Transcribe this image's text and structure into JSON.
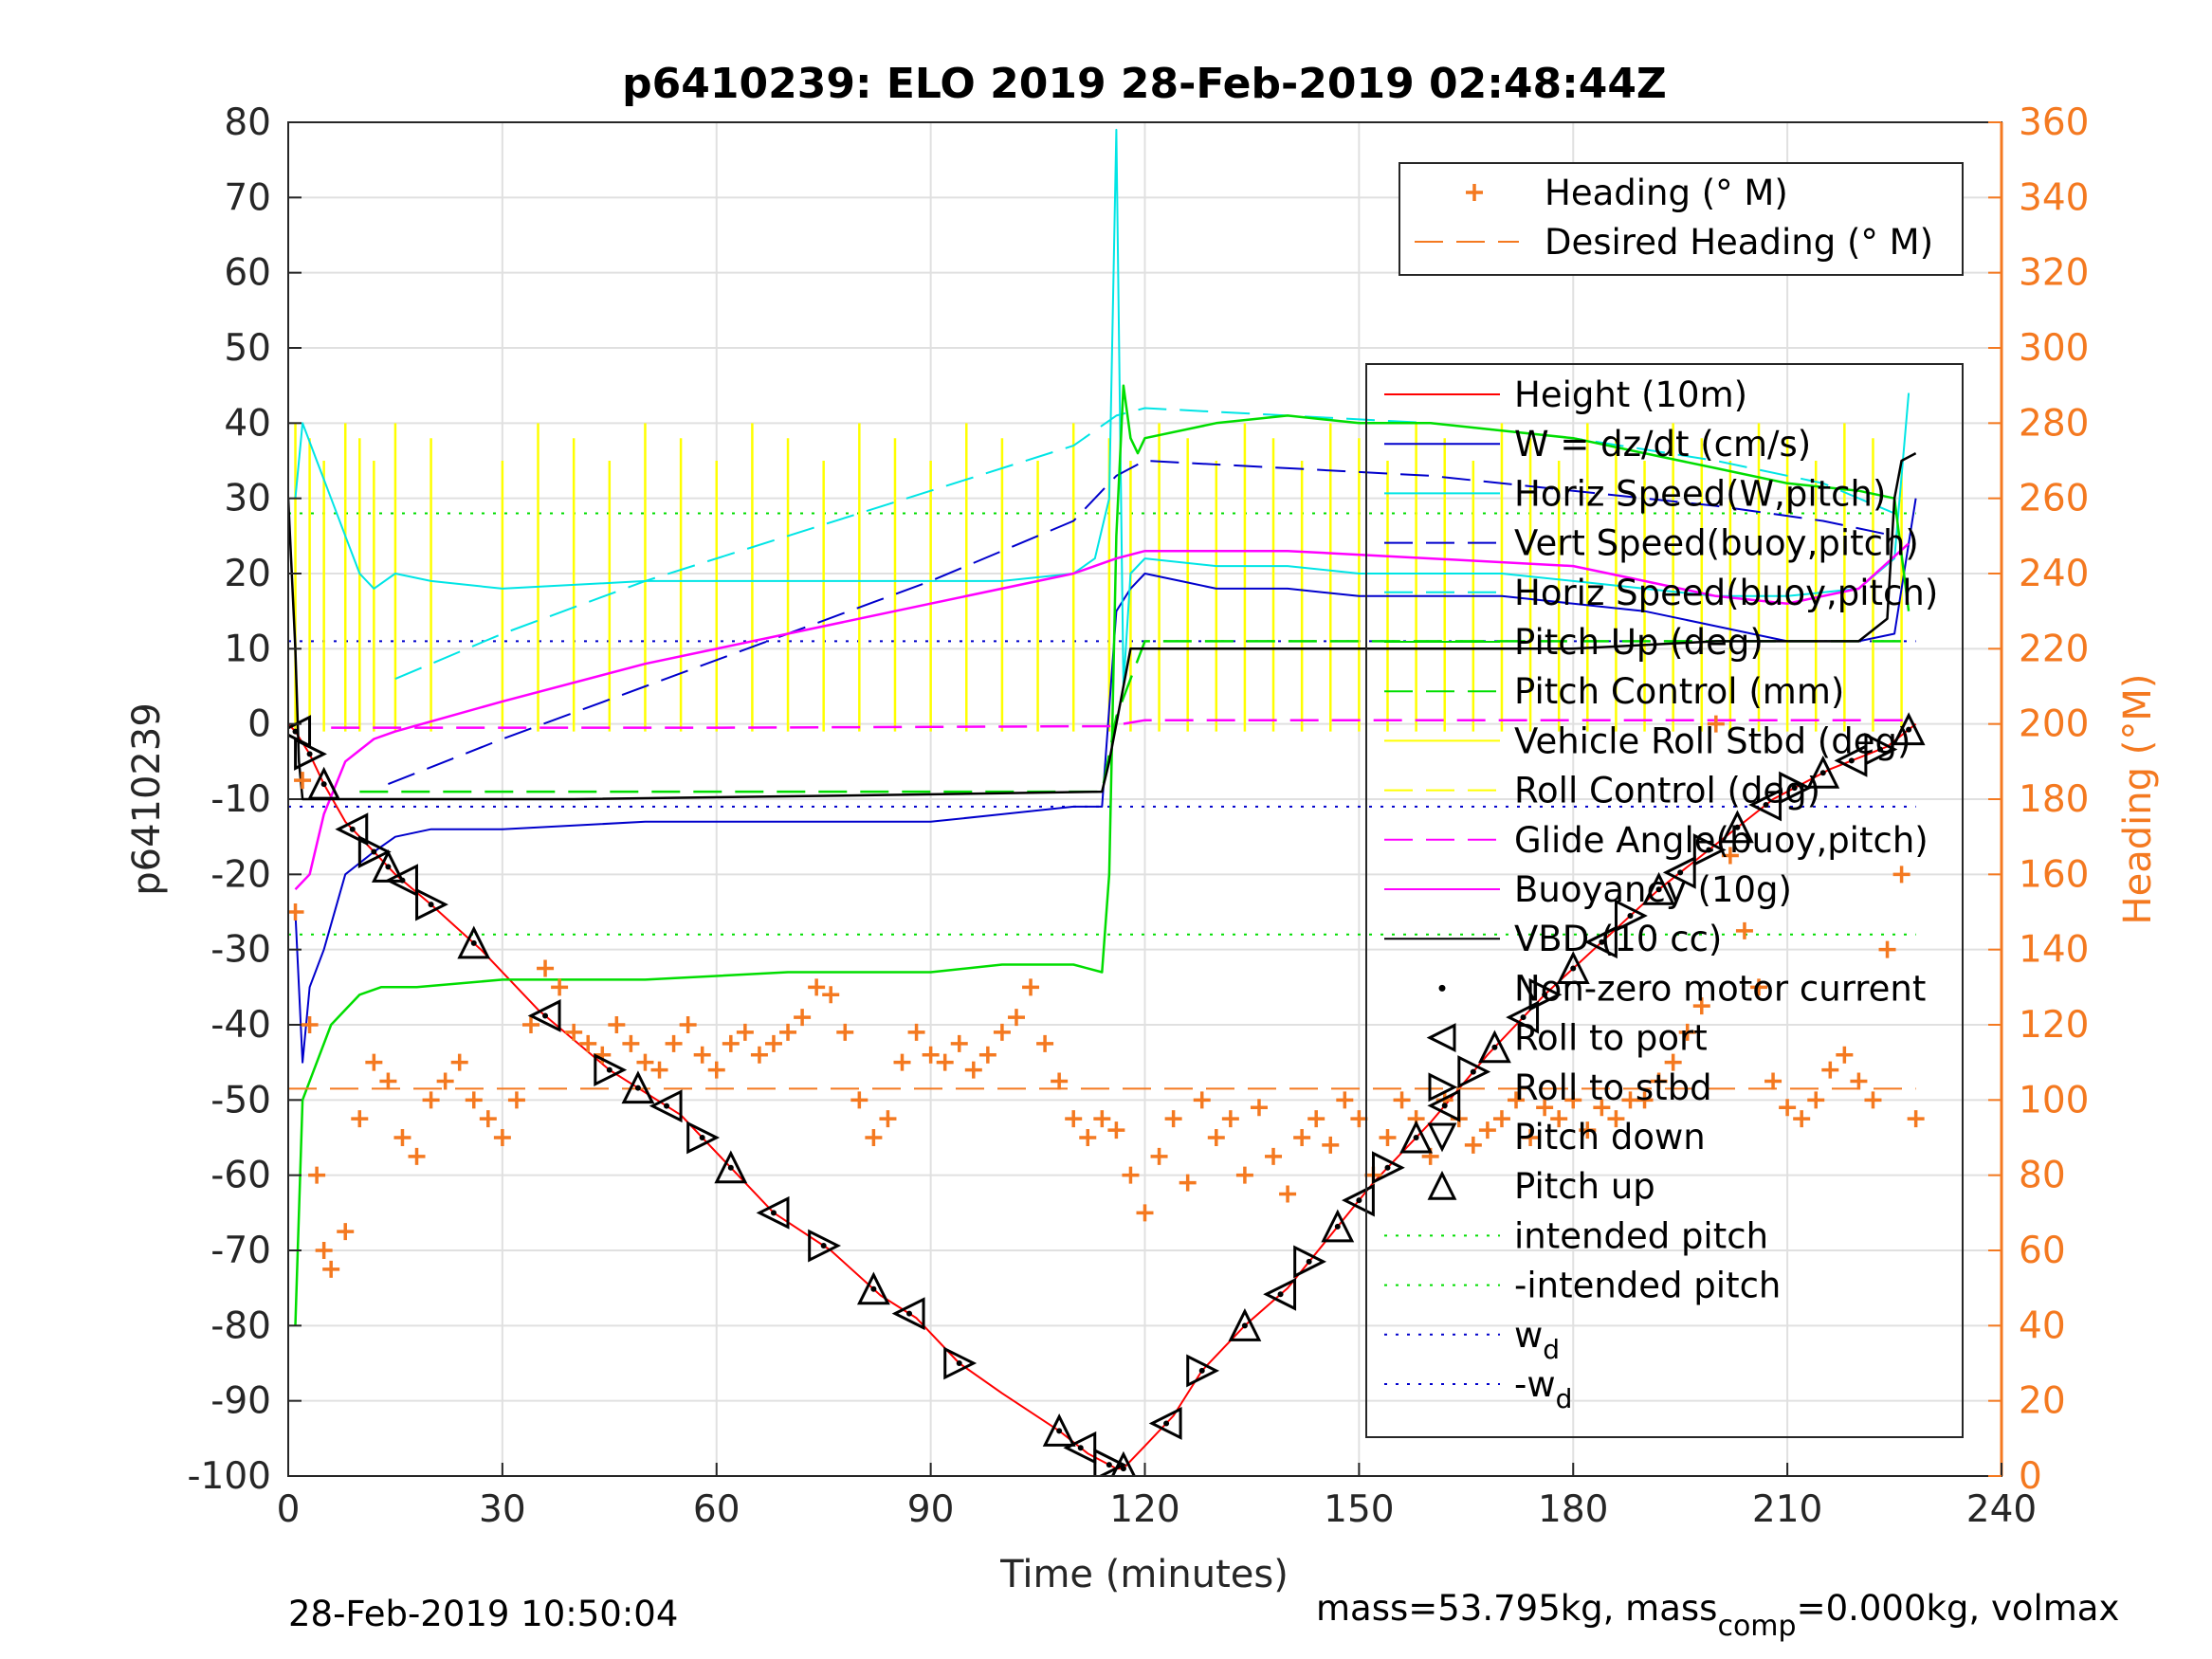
{
  "chart_data": {
    "type": "line",
    "title": "p6410239: ELO 2019 28-Feb-2019 02:48:44Z",
    "xlabel": "Time (minutes)",
    "ylabel_left": "p6410239",
    "ylabel_right": "Heading (°M)",
    "xlim": [
      0,
      240
    ],
    "ylim_left": [
      -100,
      80
    ],
    "ylim_right": [
      0,
      360
    ],
    "x_ticks": [
      "0",
      "30",
      "60",
      "90",
      "120",
      "150",
      "180",
      "210",
      "240"
    ],
    "y_ticks_left": [
      "-100",
      "-90",
      "-80",
      "-70",
      "-60",
      "-50",
      "-40",
      "-30",
      "-20",
      "-10",
      "0",
      "10",
      "20",
      "30",
      "40",
      "50",
      "60",
      "70",
      "80"
    ],
    "y_ticks_right": [
      "0",
      "20",
      "40",
      "60",
      "80",
      "100",
      "120",
      "140",
      "160",
      "180",
      "200",
      "220",
      "240",
      "260",
      "280",
      "300",
      "320",
      "340",
      "360"
    ],
    "grid": true,
    "heading_legend": [
      {
        "label": "Heading (° M)",
        "color": "#f47920",
        "style": "plus"
      },
      {
        "label": "Desired Heading (° M)",
        "color": "#f47920",
        "style": "dashed"
      }
    ],
    "main_legend": [
      {
        "label": "Height (10m)",
        "color": "#ff0000",
        "style": "solid"
      },
      {
        "label": "W = dz/dt (cm/s)",
        "color": "#0000cc",
        "style": "solid"
      },
      {
        "label": "Horiz Speed(W,pitch)",
        "color": "#00e5e5",
        "style": "solid"
      },
      {
        "label": "Vert Speed(buoy,pitch)",
        "color": "#0000cc",
        "style": "dashed"
      },
      {
        "label": "Horiz Speed(buoy,pitch)",
        "color": "#00e5e5",
        "style": "dashed"
      },
      {
        "label": "Pitch Up (deg)",
        "color": "#00dd00",
        "style": "solid"
      },
      {
        "label": "Pitch Control (mm)",
        "color": "#00dd00",
        "style": "dashed"
      },
      {
        "label": "Vehicle Roll Stbd (deg)",
        "color": "#ffff00",
        "style": "solid"
      },
      {
        "label": "Roll Control (deg)",
        "color": "#ffff00",
        "style": "dashed"
      },
      {
        "label": "Glide Angle(buoy,pitch)",
        "color": "#ff00ff",
        "style": "dashed"
      },
      {
        "label": "Buoyancy (10g)",
        "color": "#ff00ff",
        "style": "solid"
      },
      {
        "label": "VBD (10 cc)",
        "color": "#000000",
        "style": "solid"
      },
      {
        "label": "Non-zero motor current",
        "color": "#000000",
        "style": "dot"
      },
      {
        "label": "Roll to port",
        "color": "#000000",
        "style": "tri-left"
      },
      {
        "label": "Roll to stbd",
        "color": "#000000",
        "style": "tri-right"
      },
      {
        "label": "Pitch down",
        "color": "#000000",
        "style": "tri-down"
      },
      {
        "label": "Pitch up",
        "color": "#000000",
        "style": "tri-up"
      },
      {
        "label": "intended pitch",
        "color": "#00dd00",
        "style": "dotted"
      },
      {
        "label": "-intended pitch",
        "color": "#00dd00",
        "style": "dotted"
      },
      {
        "label": "w",
        "sub": "d",
        "color": "#0000cc",
        "style": "dotted"
      },
      {
        "label": "-w",
        "sub": "d",
        "color": "#0000cc",
        "style": "dotted"
      }
    ],
    "series": [
      {
        "name": "Height (10m)",
        "axis": "left",
        "x": [
          0,
          1,
          3,
          5,
          8,
          12,
          15,
          20,
          27,
          35,
          45,
          55,
          62,
          68,
          76,
          83,
          88,
          94,
          100,
          108,
          112,
          116,
          117,
          118,
          120,
          124,
          128,
          134,
          140,
          146,
          152,
          160,
          168,
          176,
          184,
          192,
          200,
          208,
          216,
          224,
          228
        ],
        "y": [
          0,
          -1,
          -4,
          -8,
          -13,
          -17,
          -20,
          -24,
          -30,
          -38,
          -46,
          -52,
          -59,
          -65,
          -70,
          -76,
          -79,
          -85,
          -89,
          -94,
          -97,
          -99,
          -99,
          -98,
          -96,
          -92,
          -86,
          -80,
          -75,
          -68,
          -61,
          -53,
          -44,
          -36,
          -29,
          -22,
          -16,
          -10,
          -6,
          -3,
          0
        ]
      },
      {
        "name": "W = dz/dt (cm/s)",
        "axis": "left",
        "x": [
          1,
          2,
          3,
          5,
          8,
          12,
          15,
          20,
          30,
          50,
          70,
          90,
          100,
          110,
          114,
          116,
          118,
          120,
          125,
          130,
          140,
          150,
          160,
          170,
          180,
          190,
          200,
          210,
          220,
          225,
          228
        ],
        "y": [
          -25,
          -45,
          -35,
          -30,
          -20,
          -17,
          -15,
          -14,
          -14,
          -13,
          -13,
          -13,
          -12,
          -11,
          -11,
          15,
          18,
          20,
          19,
          18,
          18,
          17,
          17,
          17,
          16,
          15,
          13,
          11,
          11,
          12,
          30
        ]
      },
      {
        "name": "Horiz Speed(W,pitch)",
        "axis": "left",
        "x": [
          1,
          2,
          4,
          6,
          8,
          10,
          12,
          15,
          20,
          30,
          50,
          70,
          90,
          100,
          110,
          113,
          115,
          116,
          117,
          118,
          120,
          130,
          140,
          150,
          160,
          170,
          180,
          190,
          200,
          210,
          220,
          225,
          227
        ],
        "y": [
          30,
          40,
          35,
          30,
          25,
          20,
          18,
          20,
          19,
          18,
          19,
          19,
          19,
          19,
          20,
          22,
          30,
          79,
          5,
          20,
          22,
          21,
          21,
          20,
          20,
          20,
          19,
          18,
          17,
          17,
          18,
          22,
          44
        ]
      },
      {
        "name": "Vert Speed(buoy,pitch)",
        "axis": "left",
        "x": [
          14,
          30,
          50,
          70,
          90,
          110,
          116,
          120,
          140,
          160,
          180,
          200,
          215,
          225
        ],
        "y": [
          -8,
          -2,
          5,
          12,
          19,
          27,
          33,
          35,
          34,
          33,
          31,
          29,
          27,
          25
        ]
      },
      {
        "name": "Horiz Speed(buoy,pitch)",
        "axis": "left",
        "x": [
          15,
          30,
          50,
          70,
          90,
          110,
          116,
          120,
          140,
          160,
          180,
          200,
          215,
          225
        ],
        "y": [
          6,
          12,
          19,
          25,
          31,
          37,
          41,
          42,
          41,
          40,
          38,
          35,
          32,
          28
        ]
      },
      {
        "name": "Pitch Up (deg)",
        "axis": "left",
        "x": [
          1,
          2,
          4,
          6,
          8,
          10,
          13,
          18,
          30,
          50,
          70,
          90,
          100,
          110,
          114,
          115,
          116,
          117,
          118,
          119,
          120,
          130,
          140,
          150,
          160,
          170,
          180,
          190,
          200,
          210,
          220,
          225,
          227
        ],
        "y": [
          -80,
          -50,
          -45,
          -40,
          -38,
          -36,
          -35,
          -35,
          -34,
          -34,
          -33,
          -33,
          -32,
          -32,
          -33,
          -20,
          25,
          45,
          38,
          36,
          38,
          40,
          41,
          40,
          40,
          39,
          38,
          36,
          34,
          32,
          31,
          30,
          15
        ]
      },
      {
        "name": "Pitch Control (mm)",
        "axis": "left",
        "x": [
          10,
          30,
          60,
          90,
          114,
          116,
          120,
          160,
          200,
          227
        ],
        "y": [
          -9,
          -9,
          -9,
          -9,
          -9,
          1,
          11,
          11,
          11,
          11
        ]
      },
      {
        "name": "Glide Angle(buoy,pitch)",
        "axis": "left",
        "x": [
          6,
          30,
          60,
          90,
          115,
          120,
          160,
          200,
          227
        ],
        "y": [
          -0.5,
          -0.5,
          -0.5,
          -0.4,
          -0.3,
          0.5,
          0.5,
          0.5,
          0.5
        ]
      },
      {
        "name": "Buoyancy (10g)",
        "axis": "left",
        "x": [
          1,
          3,
          5,
          8,
          12,
          15,
          30,
          50,
          70,
          90,
          110,
          116,
          120,
          140,
          160,
          180,
          190,
          200,
          210,
          220,
          227
        ],
        "y": [
          -22,
          -20,
          -12,
          -5,
          -2,
          -1,
          3,
          8,
          12,
          16,
          20,
          22,
          23,
          23,
          22,
          21,
          19,
          17,
          16,
          18,
          24
        ]
      },
      {
        "name": "VBD (10 cc)",
        "axis": "left",
        "x": [
          0,
          1,
          1.5,
          2,
          40,
          80,
          114,
          115,
          116,
          117,
          118,
          140,
          180,
          200,
          220,
          224,
          225,
          226,
          228
        ],
        "y": [
          30,
          10,
          -5,
          -10,
          -10,
          -9.5,
          -9,
          -5,
          0,
          5,
          10,
          10,
          10,
          11,
          11,
          14,
          30,
          35,
          36
        ]
      },
      {
        "name": "Desired Heading (° M)",
        "axis": "right",
        "x": [
          0,
          228
        ],
        "y": [
          103,
          103
        ]
      },
      {
        "name": "Heading (° M)",
        "axis": "right",
        "x": [
          1,
          2,
          3,
          4,
          5,
          6,
          8,
          10,
          12,
          14,
          16,
          18,
          20,
          22,
          24,
          26,
          28,
          30,
          32,
          34,
          36,
          38,
          40,
          42,
          44,
          46,
          48,
          50,
          52,
          54,
          56,
          58,
          60,
          62,
          64,
          66,
          68,
          70,
          72,
          74,
          76,
          78,
          80,
          82,
          84,
          86,
          88,
          90,
          92,
          94,
          96,
          98,
          100,
          102,
          104,
          106,
          108,
          110,
          112,
          114,
          116,
          118,
          120,
          122,
          124,
          126,
          128,
          130,
          132,
          134,
          136,
          138,
          140,
          142,
          144,
          146,
          148,
          150,
          152,
          154,
          156,
          158,
          160,
          162,
          164,
          166,
          168,
          170,
          172,
          174,
          176,
          178,
          180,
          182,
          184,
          186,
          188,
          190,
          192,
          194,
          196,
          198,
          200,
          202,
          204,
          206,
          208,
          210,
          212,
          214,
          216,
          218,
          220,
          222,
          224,
          226,
          228
        ],
        "y": [
          150,
          185,
          120,
          80,
          60,
          55,
          65,
          95,
          110,
          105,
          90,
          85,
          100,
          105,
          110,
          100,
          95,
          90,
          100,
          120,
          135,
          130,
          118,
          115,
          112,
          120,
          115,
          110,
          108,
          115,
          120,
          112,
          108,
          115,
          118,
          112,
          115,
          118,
          122,
          130,
          128,
          118,
          100,
          90,
          95,
          110,
          118,
          112,
          110,
          115,
          108,
          112,
          118,
          122,
          130,
          115,
          105,
          95,
          90,
          95,
          92,
          80,
          70,
          85,
          95,
          78,
          100,
          90,
          95,
          80,
          98,
          85,
          75,
          90,
          95,
          88,
          100,
          95,
          80,
          90,
          100,
          95,
          85,
          100,
          95,
          88,
          92,
          95,
          100,
          90,
          98,
          95,
          100,
          92,
          98,
          95,
          100,
          100,
          105,
          110,
          118,
          125,
          200,
          165,
          145,
          130,
          105,
          98,
          95,
          100,
          108,
          112,
          105,
          100,
          140,
          160,
          95
        ]
      }
    ],
    "footer_left": "28-Feb-2019 10:50:04",
    "footer_right_a": "mass=53.795kg, mass",
    "footer_right_sub": "comp",
    "footer_right_b": "=0.000kg, volmax"
  }
}
